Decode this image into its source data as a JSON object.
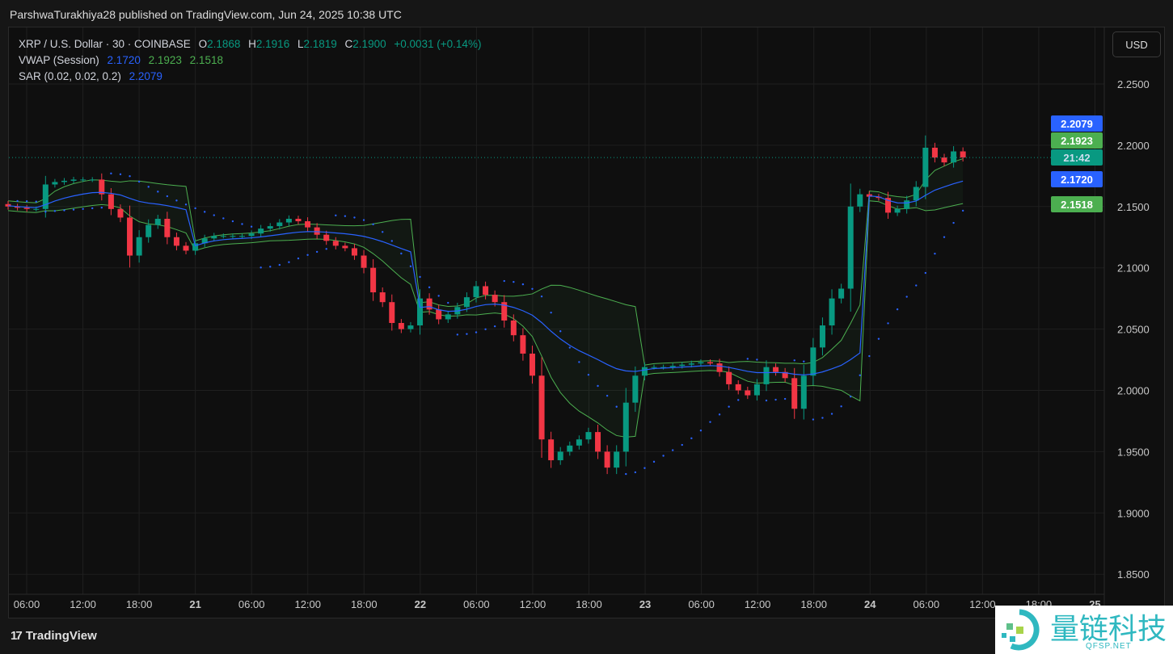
{
  "attribution": "ParshwaTurakhiya28 published on TradingView.com, Jun 24, 2025 10:38 UTC",
  "legend": {
    "symbol": "XRP / U.S. Dollar · 30 · COINBASE",
    "o_label": "O",
    "o": "2.1868",
    "h_label": "H",
    "h": "2.1916",
    "l_label": "L",
    "l": "2.1819",
    "c_label": "C",
    "c": "2.1900",
    "change": "+0.0031 (+0.14%)",
    "vwap_label": "VWAP (Session)",
    "vwap": "2.1720",
    "vwap_upper": "2.1923",
    "vwap_lower": "2.1518",
    "sar_label": "SAR (0.02, 0.02, 0.2)",
    "sar": "2.2079"
  },
  "currency_button": "USD",
  "price_labels": [
    {
      "text": "2.2079",
      "value": 2.2079,
      "color": "#2962ff"
    },
    {
      "text": "2.1923",
      "value": 2.1923,
      "color": "#4caf50"
    },
    {
      "text": "21:42",
      "value": 2.19,
      "color": "#089981"
    },
    {
      "text": "2.1720",
      "value": 2.172,
      "color": "#2962ff"
    },
    {
      "text": "2.1518",
      "value": 2.1518,
      "color": "#4caf50"
    }
  ],
  "footer": {
    "logo_text": "TradingView"
  },
  "watermark": {
    "text": "量链科技",
    "sub": "QFSP.NET"
  },
  "colors": {
    "up": "#089981",
    "down": "#f23645",
    "vwap": "#2962ff",
    "bands": "#4caf50",
    "sar": "#2962ff"
  },
  "chart_data": {
    "type": "candlestick",
    "interval": "30",
    "ylim": [
      1.82,
      2.29
    ],
    "yticks": [
      2.25,
      2.2,
      2.15,
      2.1,
      2.05,
      2.0,
      1.95,
      1.9,
      1.85
    ],
    "ytick_labels": [
      "2.2500",
      "2.2000",
      "2.1500",
      "2.1000",
      "2.0500",
      "2.0000",
      "1.9500",
      "1.9000",
      "1.8500"
    ],
    "xtick_labels": [
      "06:00",
      "12:00",
      "18:00",
      "21",
      "06:00",
      "12:00",
      "18:00",
      "22",
      "06:00",
      "12:00",
      "18:00",
      "23",
      "06:00",
      "12:00",
      "18:00",
      "24",
      "06:00",
      "12:00",
      "18:00",
      "25"
    ],
    "grid": true,
    "start": "Jun 20 04:00 UTC",
    "step_hours": 1,
    "close": [
      2.15,
      2.149,
      2.148,
      2.148,
      2.168,
      2.17,
      2.171,
      2.172,
      2.172,
      2.172,
      2.16,
      2.148,
      2.141,
      2.11,
      2.125,
      2.135,
      2.14,
      2.125,
      2.118,
      2.114,
      2.12,
      2.124,
      2.126,
      2.126,
      2.126,
      2.126,
      2.128,
      2.132,
      2.134,
      2.137,
      2.14,
      2.138,
      2.133,
      2.127,
      2.122,
      2.118,
      2.116,
      2.11,
      2.1,
      2.08,
      2.072,
      2.055,
      2.05,
      2.053,
      2.075,
      2.066,
      2.058,
      2.062,
      2.068,
      2.076,
      2.085,
      2.078,
      2.072,
      2.057,
      2.045,
      2.03,
      2.012,
      1.96,
      1.943,
      1.95,
      1.955,
      1.96,
      1.966,
      1.95,
      1.937,
      1.95,
      1.99,
      2.012,
      2.019,
      2.019,
      2.019,
      2.02,
      2.021,
      2.022,
      2.023,
      2.022,
      2.015,
      2.005,
      2.0,
      1.996,
      2.005,
      2.019,
      2.015,
      2.01,
      1.985,
      2.012,
      2.035,
      2.053,
      2.075,
      2.083,
      2.15,
      2.16,
      2.158,
      2.157,
      2.145,
      2.148,
      2.155,
      2.166,
      2.198,
      2.19,
      2.186,
      2.195,
      2.19
    ],
    "last_price": 2.19
  }
}
